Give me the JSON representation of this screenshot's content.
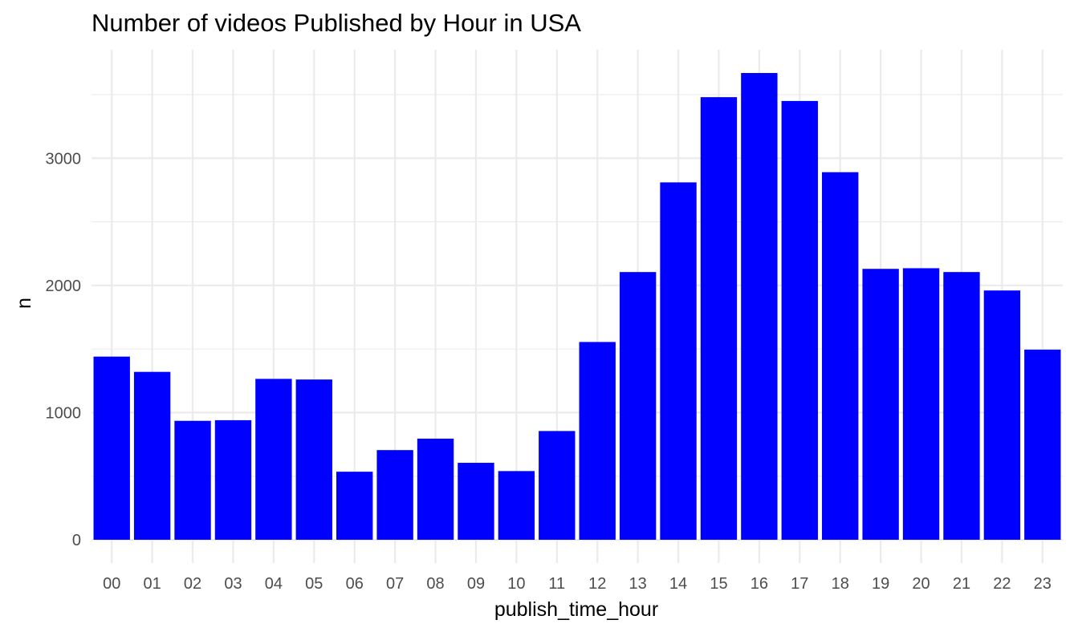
{
  "chart_data": {
    "type": "bar",
    "title": "Number of videos Published by Hour in USA",
    "xlabel": "publish_time_hour",
    "ylabel": "n",
    "categories": [
      "00",
      "01",
      "02",
      "03",
      "04",
      "05",
      "06",
      "07",
      "08",
      "09",
      "10",
      "11",
      "12",
      "13",
      "14",
      "15",
      "16",
      "17",
      "18",
      "19",
      "20",
      "21",
      "22",
      "23"
    ],
    "values": [
      1440,
      1320,
      935,
      940,
      1265,
      1260,
      535,
      705,
      795,
      605,
      540,
      855,
      1555,
      2105,
      2810,
      3480,
      3670,
      3450,
      2890,
      2130,
      2135,
      2105,
      1960,
      1495
    ],
    "y_ticks": [
      0,
      1000,
      2000,
      3000
    ],
    "y_tick_labels": [
      "0",
      "1000",
      "2000",
      "3000"
    ],
    "y_minor_ticks": [
      500,
      1500,
      2500,
      3500
    ],
    "ylim": [
      -183,
      3853
    ],
    "grid": true,
    "legend": "none",
    "bar_color": "#0000FF",
    "grid_color": "#EBEBEB",
    "background": "#FFFFFF"
  }
}
